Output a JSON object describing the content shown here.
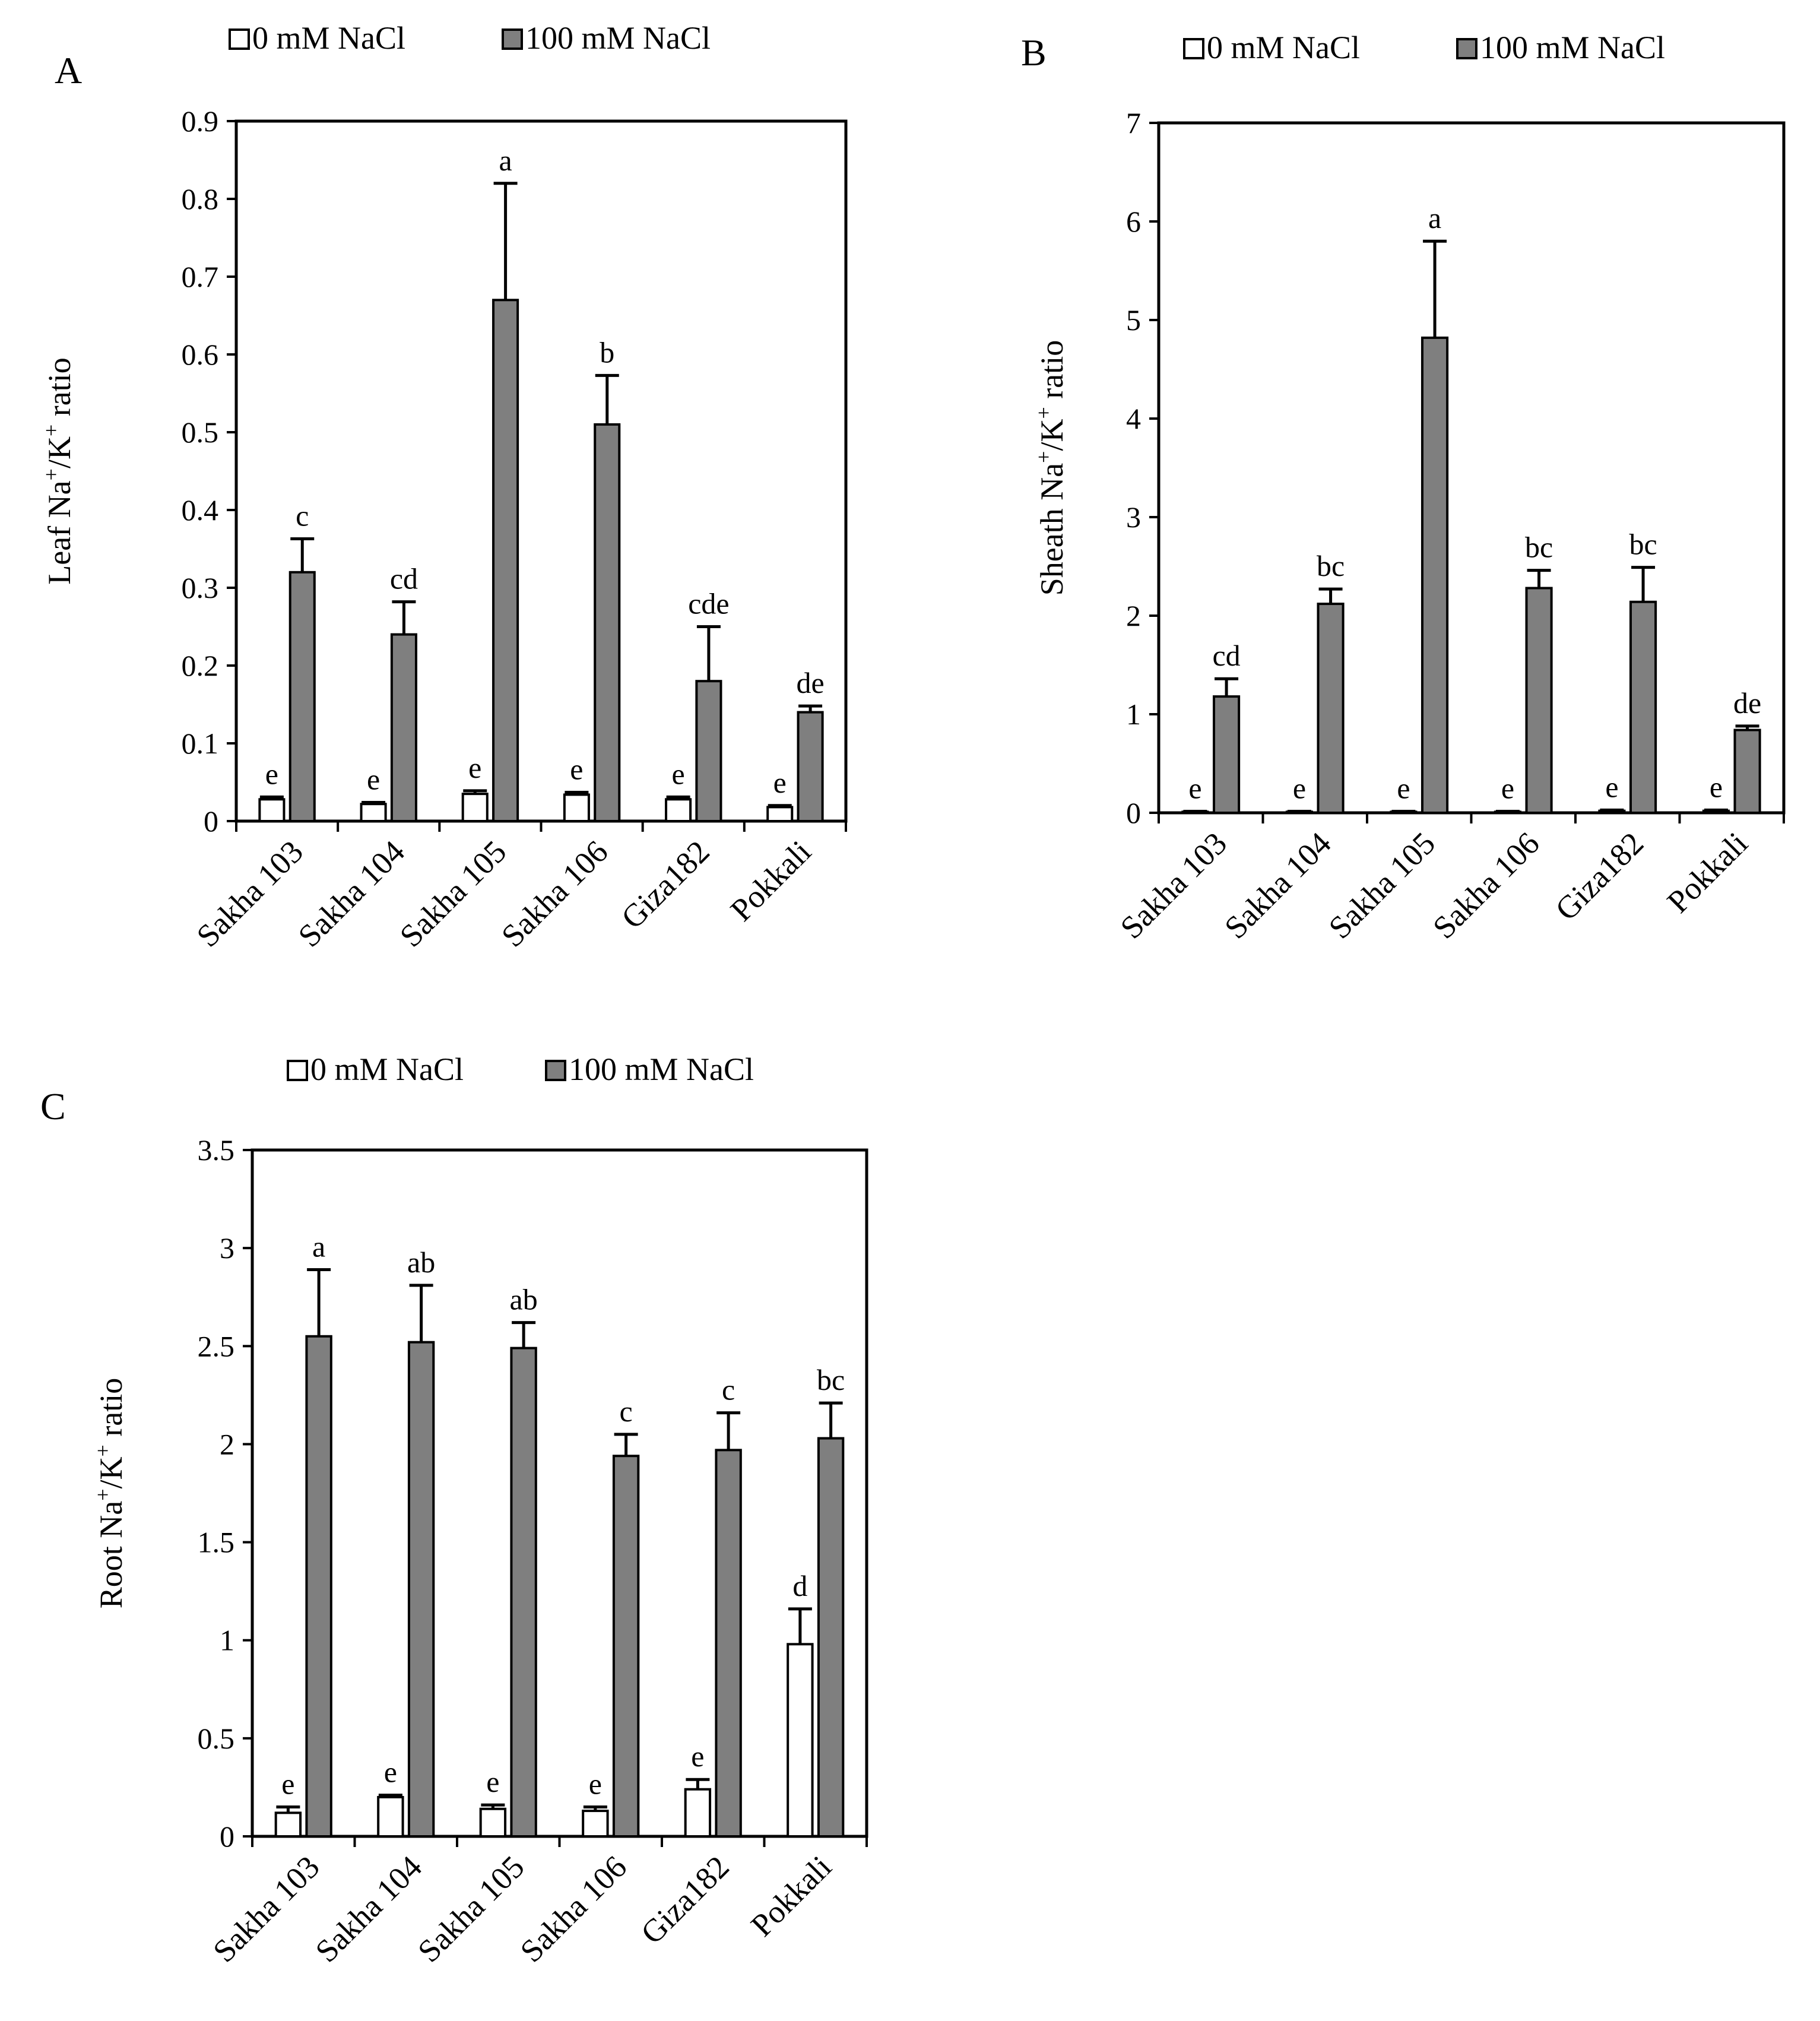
{
  "figure": {
    "legend": [
      "0 mM NaCl",
      "100 mM NaCl"
    ],
    "colors": {
      "control": "#ffffff",
      "salt": "#7f7f7f",
      "stroke": "#000000"
    }
  },
  "chart_data": [
    {
      "panel": "A",
      "type": "bar",
      "ylabel_main": "Leaf Na",
      "ylabel_sup1": "+",
      "ylabel_mid": "/K",
      "ylabel_sup2": "+",
      "ylabel_end": " ratio",
      "ylim": [
        0,
        0.9
      ],
      "yticks": [
        "0",
        "0.1",
        "0.2",
        "0.3",
        "0.4",
        "0.5",
        "0.6",
        "0.7",
        "0.8",
        "0.9"
      ],
      "categories": [
        "Sakha 103",
        "Sakha 104",
        "Sakha 105",
        "Sakha 106",
        "Giza182",
        "Pokkali"
      ],
      "series": [
        {
          "name": "0 mM NaCl",
          "values": [
            0.028,
            0.022,
            0.035,
            0.034,
            0.028,
            0.018
          ],
          "errors": [
            0.003,
            0.002,
            0.004,
            0.003,
            0.003,
            0.002
          ],
          "labels": [
            "e",
            "e",
            "e",
            "e",
            "e",
            "e"
          ]
        },
        {
          "name": "100 mM NaCl",
          "values": [
            0.32,
            0.24,
            0.67,
            0.51,
            0.18,
            0.14
          ],
          "errors": [
            0.043,
            0.042,
            0.15,
            0.063,
            0.07,
            0.008
          ],
          "labels": [
            "c",
            "cd",
            "a",
            "b",
            "cde",
            "de"
          ]
        }
      ]
    },
    {
      "panel": "B",
      "type": "bar",
      "ylabel_main": "Sheath Na",
      "ylabel_sup1": "+",
      "ylabel_mid": "/K",
      "ylabel_sup2": "+",
      "ylabel_end": " ratio",
      "ylim": [
        0,
        7
      ],
      "yticks": [
        "0",
        "1",
        "2",
        "3",
        "4",
        "5",
        "6",
        "7"
      ],
      "categories": [
        "Sakha 103",
        "Sakha 104",
        "Sakha 105",
        "Sakha 106",
        "Giza182",
        "Pokkali"
      ],
      "series": [
        {
          "name": "0 mM NaCl",
          "values": [
            0.01,
            0.01,
            0.01,
            0.01,
            0.02,
            0.02
          ],
          "errors": [
            0.005,
            0.005,
            0.005,
            0.005,
            0.008,
            0.008
          ],
          "labels": [
            "e",
            "e",
            "e",
            "e",
            "e",
            "e"
          ]
        },
        {
          "name": "100 mM NaCl",
          "values": [
            1.18,
            2.12,
            4.82,
            2.28,
            2.14,
            0.84
          ],
          "errors": [
            0.18,
            0.15,
            0.98,
            0.18,
            0.35,
            0.04
          ],
          "labels": [
            "cd",
            "bc",
            "a",
            "bc",
            "bc",
            "de"
          ]
        }
      ]
    },
    {
      "panel": "C",
      "type": "bar",
      "ylabel_main": "Root Na",
      "ylabel_sup1": "+",
      "ylabel_mid": "/K",
      "ylabel_sup2": "+",
      "ylabel_end": " ratio",
      "ylim": [
        0,
        3.5
      ],
      "yticks": [
        "0",
        "0.5",
        "1",
        "1.5",
        "2",
        "2.5",
        "3",
        "3.5"
      ],
      "categories": [
        "Sakha 103",
        "Sakha 104",
        "Sakha 105",
        "Sakha 106",
        "Giza182",
        "Pokkali"
      ],
      "series": [
        {
          "name": "0 mM NaCl",
          "values": [
            0.12,
            0.2,
            0.14,
            0.13,
            0.24,
            0.98
          ],
          "errors": [
            0.03,
            0.01,
            0.02,
            0.02,
            0.05,
            0.18
          ],
          "labels": [
            "e",
            "e",
            "e",
            "e",
            "e",
            "d"
          ]
        },
        {
          "name": "100 mM NaCl",
          "values": [
            2.55,
            2.52,
            2.49,
            1.94,
            1.97,
            2.03
          ],
          "errors": [
            0.34,
            0.29,
            0.13,
            0.11,
            0.19,
            0.18
          ],
          "labels": [
            "a",
            "ab",
            "ab",
            "c",
            "c",
            "bc"
          ]
        }
      ]
    }
  ]
}
